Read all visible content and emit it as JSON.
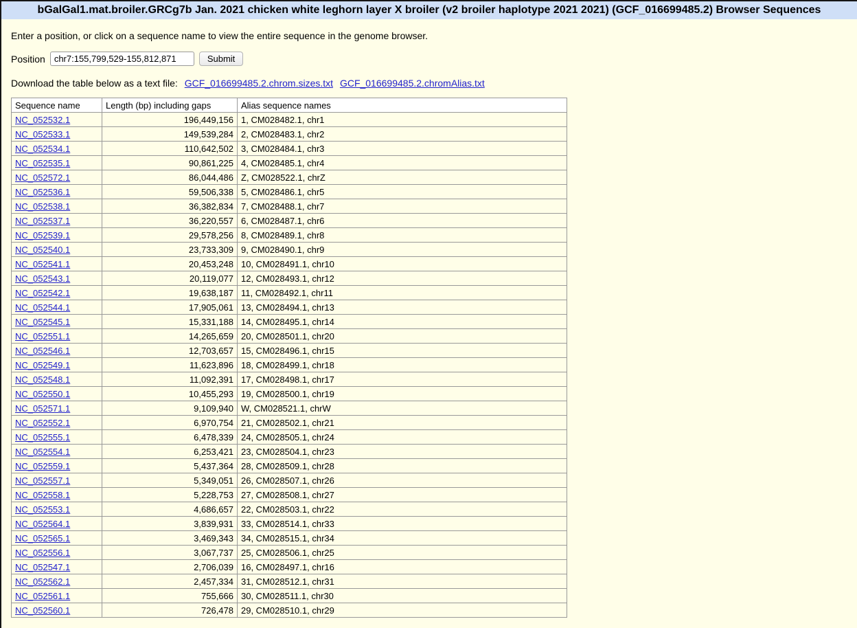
{
  "page": {
    "title": "bGalGal1.mat.broiler.GRCg7b Jan. 2021 chicken white leghorn layer X broiler (v2 broiler haplotype 2021 2021) (GCF_016699485.2) Browser Sequences",
    "intro": "Enter a position, or click on a sequence name to view the entire sequence in the genome browser."
  },
  "form": {
    "position_label": "Position",
    "position_value": "chr7:155,799,529-155,812,871",
    "submit_label": "Submit"
  },
  "download": {
    "text": "Download the table below as a text file:",
    "chrom_sizes_link": "GCF_016699485.2.chrom.sizes.txt",
    "chrom_alias_link": "GCF_016699485.2.chromAlias.txt"
  },
  "colors": {
    "title_bar_bg": "#cfdff7",
    "page_bg": "#fffee8",
    "link": "#2222cc",
    "table_header_bg": "#ffffff",
    "table_border": "#999999"
  },
  "table": {
    "headers": [
      "Sequence name",
      "Length (bp) including gaps",
      "Alias sequence names"
    ],
    "rows": [
      {
        "name": "NC_052532.1",
        "length": "196,449,156",
        "alias": "1, CM028482.1, chr1"
      },
      {
        "name": "NC_052533.1",
        "length": "149,539,284",
        "alias": "2, CM028483.1, chr2"
      },
      {
        "name": "NC_052534.1",
        "length": "110,642,502",
        "alias": "3, CM028484.1, chr3"
      },
      {
        "name": "NC_052535.1",
        "length": "90,861,225",
        "alias": "4, CM028485.1, chr4"
      },
      {
        "name": "NC_052572.1",
        "length": "86,044,486",
        "alias": "Z, CM028522.1, chrZ"
      },
      {
        "name": "NC_052536.1",
        "length": "59,506,338",
        "alias": "5, CM028486.1, chr5"
      },
      {
        "name": "NC_052538.1",
        "length": "36,382,834",
        "alias": "7, CM028488.1, chr7"
      },
      {
        "name": "NC_052537.1",
        "length": "36,220,557",
        "alias": "6, CM028487.1, chr6"
      },
      {
        "name": "NC_052539.1",
        "length": "29,578,256",
        "alias": "8, CM028489.1, chr8"
      },
      {
        "name": "NC_052540.1",
        "length": "23,733,309",
        "alias": "9, CM028490.1, chr9"
      },
      {
        "name": "NC_052541.1",
        "length": "20,453,248",
        "alias": "10, CM028491.1, chr10"
      },
      {
        "name": "NC_052543.1",
        "length": "20,119,077",
        "alias": "12, CM028493.1, chr12"
      },
      {
        "name": "NC_052542.1",
        "length": "19,638,187",
        "alias": "11, CM028492.1, chr11"
      },
      {
        "name": "NC_052544.1",
        "length": "17,905,061",
        "alias": "13, CM028494.1, chr13"
      },
      {
        "name": "NC_052545.1",
        "length": "15,331,188",
        "alias": "14, CM028495.1, chr14"
      },
      {
        "name": "NC_052551.1",
        "length": "14,265,659",
        "alias": "20, CM028501.1, chr20"
      },
      {
        "name": "NC_052546.1",
        "length": "12,703,657",
        "alias": "15, CM028496.1, chr15"
      },
      {
        "name": "NC_052549.1",
        "length": "11,623,896",
        "alias": "18, CM028499.1, chr18"
      },
      {
        "name": "NC_052548.1",
        "length": "11,092,391",
        "alias": "17, CM028498.1, chr17"
      },
      {
        "name": "NC_052550.1",
        "length": "10,455,293",
        "alias": "19, CM028500.1, chr19"
      },
      {
        "name": "NC_052571.1",
        "length": "9,109,940",
        "alias": "W, CM028521.1, chrW"
      },
      {
        "name": "NC_052552.1",
        "length": "6,970,754",
        "alias": "21, CM028502.1, chr21"
      },
      {
        "name": "NC_052555.1",
        "length": "6,478,339",
        "alias": "24, CM028505.1, chr24"
      },
      {
        "name": "NC_052554.1",
        "length": "6,253,421",
        "alias": "23, CM028504.1, chr23"
      },
      {
        "name": "NC_052559.1",
        "length": "5,437,364",
        "alias": "28, CM028509.1, chr28"
      },
      {
        "name": "NC_052557.1",
        "length": "5,349,051",
        "alias": "26, CM028507.1, chr26"
      },
      {
        "name": "NC_052558.1",
        "length": "5,228,753",
        "alias": "27, CM028508.1, chr27"
      },
      {
        "name": "NC_052553.1",
        "length": "4,686,657",
        "alias": "22, CM028503.1, chr22"
      },
      {
        "name": "NC_052564.1",
        "length": "3,839,931",
        "alias": "33, CM028514.1, chr33"
      },
      {
        "name": "NC_052565.1",
        "length": "3,469,343",
        "alias": "34, CM028515.1, chr34"
      },
      {
        "name": "NC_052556.1",
        "length": "3,067,737",
        "alias": "25, CM028506.1, chr25"
      },
      {
        "name": "NC_052547.1",
        "length": "2,706,039",
        "alias": "16, CM028497.1, chr16"
      },
      {
        "name": "NC_052562.1",
        "length": "2,457,334",
        "alias": "31, CM028512.1, chr31"
      },
      {
        "name": "NC_052561.1",
        "length": "755,666",
        "alias": "30, CM028511.1, chr30"
      },
      {
        "name": "NC_052560.1",
        "length": "726,478",
        "alias": "29, CM028510.1, chr29"
      }
    ]
  }
}
